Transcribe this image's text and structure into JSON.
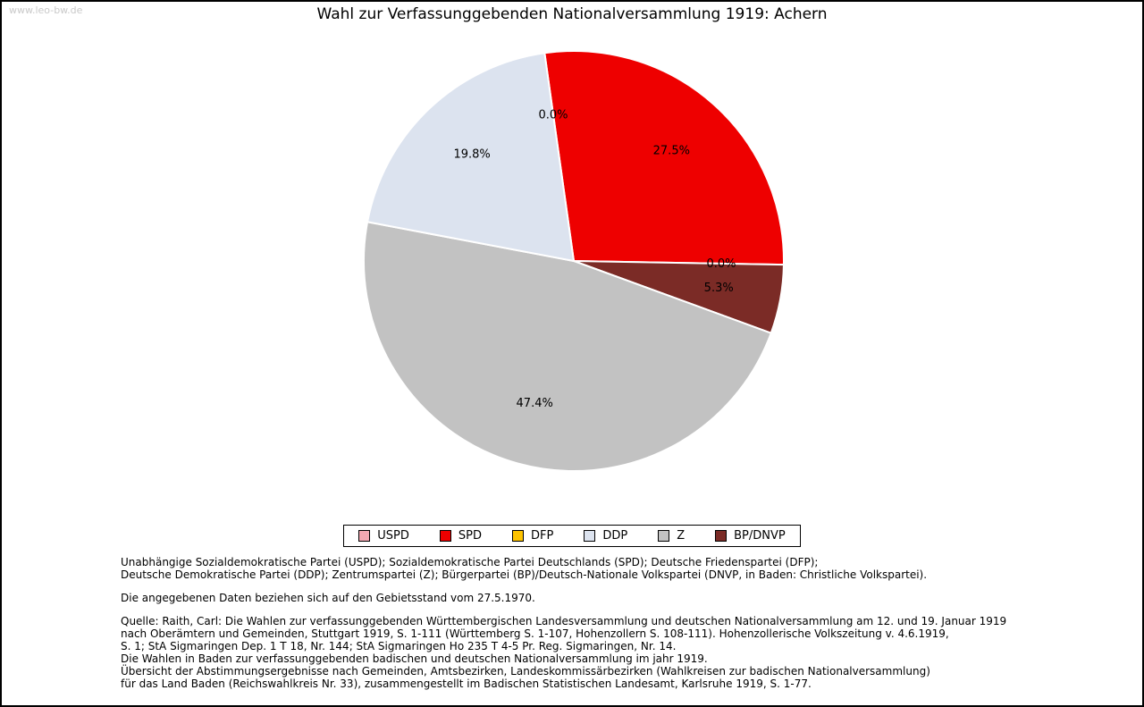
{
  "watermark": "www.leo-bw.de",
  "chart_data": {
    "type": "pie",
    "title": "Wahl zur Verfassunggebenden Nationalversammlung 1919: Achern",
    "unit": "%",
    "start_angle_deg": -8,
    "label_position": "inside",
    "legend_position": "bottom",
    "slices": [
      {
        "label": "USPD",
        "value": 0.0,
        "color": "#f3a8b2"
      },
      {
        "label": "SPD",
        "value": 27.5,
        "color": "#ee0000"
      },
      {
        "label": "DFP",
        "value": 0.0,
        "color": "#fdc300"
      },
      {
        "label": "BP/DNVP",
        "value": 5.3,
        "color": "#7b2b26"
      },
      {
        "label": "Z",
        "value": 47.4,
        "color": "#c2c2c2"
      },
      {
        "label": "DDP",
        "value": 19.8,
        "color": "#dce3ef"
      }
    ],
    "legend_order": [
      "USPD",
      "SPD",
      "DFP",
      "DDP",
      "Z",
      "BP/DNVP"
    ]
  },
  "notes": {
    "party_names": [
      "Unabhängige Sozialdemokratische Partei (USPD); Sozialdemokratische Partei Deutschlands (SPD); Deutsche Friedenspartei (DFP);",
      "Deutsche Demokratische Partei (DDP); Zentrumspartei (Z); Bürgerpartei (BP)/Deutsch-Nationale Volkspartei (DNVP, in Baden: Christliche Volkspartei)."
    ],
    "status": "Die angegebenen Daten beziehen sich auf den Gebietsstand vom 27.5.1970.",
    "source": [
      "Quelle: Raith, Carl: Die Wahlen zur verfassunggebenden Württembergischen Landesversammlung und deutschen Nationalversammlung am 12. und 19. Januar 1919",
      "nach Oberämtern und Gemeinden, Stuttgart 1919, S. 1-111 (Württemberg S. 1-107, Hohenzollern S. 108-111). Hohenzollerische Volkszeitung v. 4.6.1919,",
      "S. 1; StA Sigmaringen Dep. 1 T 18, Nr. 144; StA Sigmaringen Ho 235 T 4-5 Pr. Reg. Sigmaringen, Nr. 14.",
      "Die Wahlen in Baden zur verfassunggebenden badischen und deutschen Nationalversammlung im jahr 1919.",
      "Übersicht der Abstimmungsergebnisse nach Gemeinden, Amtsbezirken, Landeskommissärbezirken (Wahlkreisen zur badischen Nationalversammlung)",
      "für das Land Baden (Reichswahlkreis Nr. 33), zusammengestellt im Badischen Statistischen Landesamt, Karlsruhe 1919, S. 1-77."
    ]
  }
}
